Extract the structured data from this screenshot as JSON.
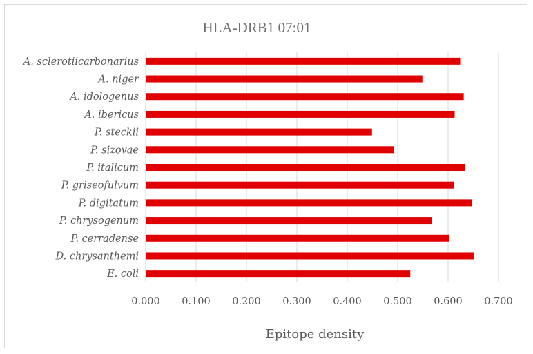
{
  "chart_data": {
    "type": "bar",
    "orientation": "horizontal",
    "title": "HLA-DRB1 07:01",
    "xlabel": "Epitope density",
    "ylabel": "",
    "xlim": [
      0,
      0.7
    ],
    "x_ticks": [
      "0.000",
      "0.100",
      "0.200",
      "0.300",
      "0.400",
      "0.500",
      "0.600",
      "0.700"
    ],
    "grid": true,
    "legend": "none",
    "bar_color": "#e00000",
    "categories": [
      "A. sclerotiicarbonarius",
      "A. niger",
      "A. idologenus",
      "A. ibericus",
      "P. steckii",
      "P. sizovae",
      "P. italicum",
      "P. griseofulvum",
      "P. digitatum",
      "P. chrysogenum",
      "P. cerradense",
      "D. chrysanthemi",
      "E. coli"
    ],
    "values": [
      0.624,
      0.549,
      0.631,
      0.613,
      0.449,
      0.492,
      0.634,
      0.611,
      0.647,
      0.568,
      0.602,
      0.652,
      0.525
    ]
  }
}
